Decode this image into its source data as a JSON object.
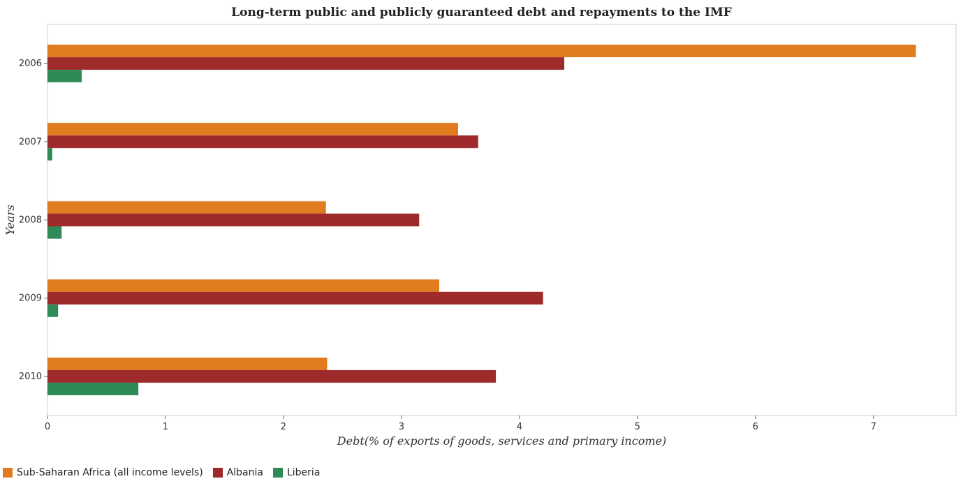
{
  "title": "Long-term public and publicly guaranteed debt and repayments to the IMF",
  "colors": {
    "sub_saharan": "#e07b1f",
    "albania": "#9e2a2b",
    "liberia": "#2e8b57"
  },
  "chart_data": {
    "type": "bar",
    "orientation": "horizontal",
    "title": "Long-term public and publicly guaranteed debt and repayments to the IMF",
    "xlabel": "Debt(% of exports of goods, services and primary income)",
    "ylabel": "Years",
    "categories": [
      "2006",
      "2007",
      "2008",
      "2009",
      "2010"
    ],
    "series": [
      {
        "name": "Sub-Saharan Africa (all income levels)",
        "color": "#e07b1f",
        "values": [
          7.36,
          3.48,
          2.36,
          3.32,
          2.37
        ]
      },
      {
        "name": "Albania",
        "color": "#9e2a2b",
        "values": [
          4.38,
          3.65,
          3.15,
          4.2,
          3.8
        ]
      },
      {
        "name": "Liberia",
        "color": "#2e8b57",
        "values": [
          0.29,
          0.04,
          0.12,
          0.09,
          0.77
        ]
      }
    ],
    "xlim": [
      0,
      7.7
    ],
    "xticks": [
      "0",
      "1",
      "2",
      "3",
      "4",
      "5",
      "6",
      "7"
    ],
    "grid": false,
    "legend_position": "bottom-left"
  }
}
